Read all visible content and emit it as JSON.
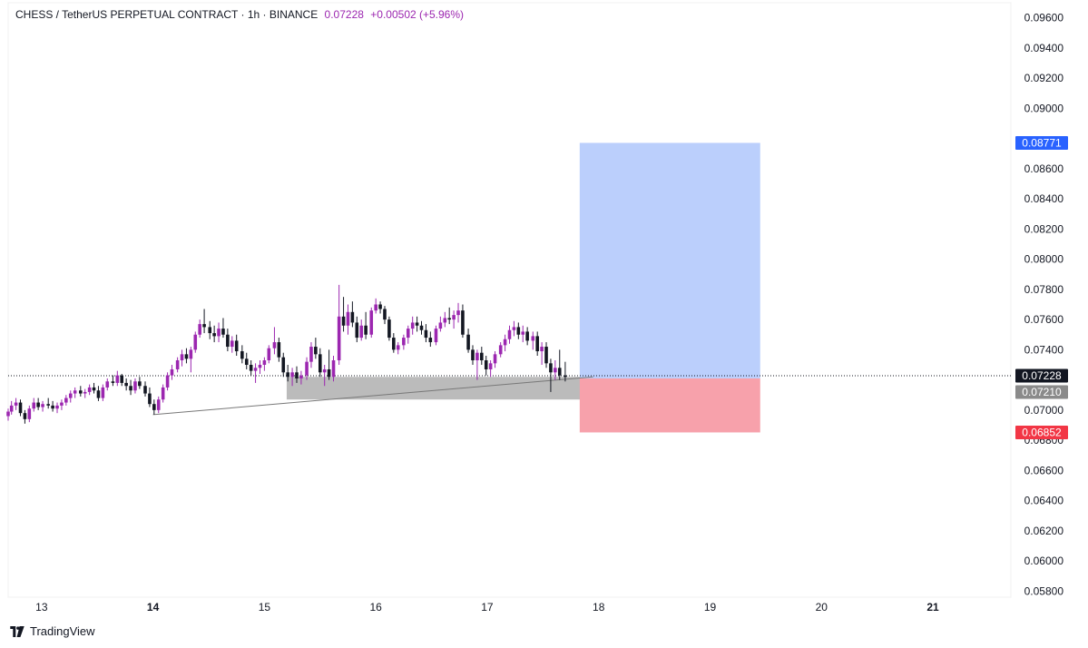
{
  "header": {
    "symbol_title": "CHESS / TetherUS PERPETUAL CONTRACT · 1h · BINANCE",
    "last_price": "0.07228",
    "change": "+0.00502 (+5.96%)"
  },
  "branding": {
    "name": "TradingView"
  },
  "colors": {
    "up_candle": "#9c27b0",
    "down_candle": "#131722",
    "target_zone": "#bbcffc",
    "stop_zone": "#f7a1ab",
    "zone_gray": "#9e9e9e",
    "target_badge": "#2962ff",
    "stop_badge": "#f23645",
    "last_price_badge": "#131722",
    "entry_badge": "#8a8a8a"
  },
  "chart_data": {
    "type": "candlestick",
    "title": "CHESS / TetherUS PERPETUAL CONTRACT · 1h · BINANCE",
    "y_axis": {
      "ylim": [
        0.0576,
        0.097
      ],
      "ticks": [
        "0.09600",
        "0.09400",
        "0.09200",
        "0.09000",
        "0.08600",
        "0.08400",
        "0.08200",
        "0.08000",
        "0.07800",
        "0.07600",
        "0.07400",
        "0.07000",
        "0.06800",
        "0.06600",
        "0.06400",
        "0.06200",
        "0.06000",
        "0.05800"
      ],
      "position": "right"
    },
    "x_axis": {
      "labels": [
        {
          "text": "13",
          "day": 13,
          "bold": false
        },
        {
          "text": "14",
          "day": 14,
          "bold": true
        },
        {
          "text": "15",
          "day": 15,
          "bold": false
        },
        {
          "text": "16",
          "day": 16,
          "bold": false
        },
        {
          "text": "17",
          "day": 17,
          "bold": false
        },
        {
          "text": "18",
          "day": 18,
          "bold": false
        },
        {
          "text": "19",
          "day": 19,
          "bold": false
        },
        {
          "text": "20",
          "day": 20,
          "bold": false
        },
        {
          "text": "21",
          "day": 21,
          "bold": true
        }
      ],
      "xlim_days": [
        12.7,
        21.7
      ]
    },
    "price_labels": {
      "target": "0.08771",
      "last": "0.07228",
      "entry": "0.07210",
      "stop": "0.06852"
    },
    "position_tool": {
      "side": "long",
      "start_day": 17.83,
      "end_day": 19.45,
      "entry": 0.0721,
      "target": 0.08771,
      "stop": 0.06852
    },
    "support_zone": {
      "start_day": 15.2,
      "end_day": 18.05,
      "top": 0.0722,
      "bottom": 0.0707
    },
    "trendline": {
      "from": {
        "day": 14.0,
        "price": 0.0697
      },
      "to": {
        "day": 17.95,
        "price": 0.0722
      }
    },
    "last_price_line": 0.07228,
    "candles": [
      [
        12.7,
        0.0696,
        0.0701,
        0.0693,
        0.0699
      ],
      [
        12.73,
        0.0699,
        0.0706,
        0.0697,
        0.0703
      ],
      [
        12.77,
        0.0703,
        0.0708,
        0.07,
        0.0705
      ],
      [
        12.81,
        0.0705,
        0.0707,
        0.0696,
        0.0698
      ],
      [
        12.85,
        0.0698,
        0.07,
        0.0691,
        0.0694
      ],
      [
        12.89,
        0.0694,
        0.0703,
        0.0692,
        0.0701
      ],
      [
        12.93,
        0.0701,
        0.0708,
        0.0699,
        0.0705
      ],
      [
        12.97,
        0.0705,
        0.0708,
        0.07,
        0.0702
      ],
      [
        13.01,
        0.0702,
        0.0706,
        0.0699,
        0.0704
      ],
      [
        13.06,
        0.0704,
        0.0708,
        0.0701,
        0.0703
      ],
      [
        13.1,
        0.0703,
        0.0706,
        0.0699,
        0.0701
      ],
      [
        13.14,
        0.0701,
        0.0705,
        0.0698,
        0.0703
      ],
      [
        13.18,
        0.0703,
        0.0707,
        0.07,
        0.0705
      ],
      [
        13.22,
        0.0705,
        0.071,
        0.0703,
        0.0708
      ],
      [
        13.26,
        0.0708,
        0.0713,
        0.0705,
        0.0711
      ],
      [
        13.3,
        0.0711,
        0.0715,
        0.0708,
        0.0713
      ],
      [
        13.35,
        0.0713,
        0.0716,
        0.0709,
        0.0711
      ],
      [
        13.39,
        0.0711,
        0.0714,
        0.0708,
        0.0712
      ],
      [
        13.43,
        0.0712,
        0.0717,
        0.071,
        0.0715
      ],
      [
        13.47,
        0.0715,
        0.0718,
        0.0711,
        0.0713
      ],
      [
        13.51,
        0.0713,
        0.0716,
        0.0706,
        0.0708
      ],
      [
        13.55,
        0.0708,
        0.0717,
        0.0706,
        0.0715
      ],
      [
        13.59,
        0.0715,
        0.0721,
        0.0713,
        0.0719
      ],
      [
        13.64,
        0.0719,
        0.0723,
        0.0716,
        0.0718
      ],
      [
        13.68,
        0.0718,
        0.0726,
        0.0716,
        0.0723
      ],
      [
        13.72,
        0.0723,
        0.0724,
        0.0716,
        0.0718
      ],
      [
        13.76,
        0.0718,
        0.0721,
        0.0713,
        0.0716
      ],
      [
        13.8,
        0.0716,
        0.072,
        0.071,
        0.0713
      ],
      [
        13.84,
        0.0713,
        0.0721,
        0.0711,
        0.0719
      ],
      [
        13.88,
        0.0719,
        0.0722,
        0.0714,
        0.0716
      ],
      [
        13.93,
        0.0716,
        0.0719,
        0.0709,
        0.0711
      ],
      [
        13.97,
        0.0711,
        0.0715,
        0.0702,
        0.0704
      ],
      [
        14.01,
        0.0704,
        0.0707,
        0.0697,
        0.07
      ],
      [
        14.05,
        0.07,
        0.0709,
        0.0698,
        0.0707
      ],
      [
        14.09,
        0.0707,
        0.0717,
        0.0705,
        0.0715
      ],
      [
        14.13,
        0.0715,
        0.0725,
        0.0713,
        0.0723
      ],
      [
        14.17,
        0.0723,
        0.073,
        0.072,
        0.0727
      ],
      [
        14.22,
        0.0727,
        0.0735,
        0.0725,
        0.0733
      ],
      [
        14.26,
        0.0733,
        0.074,
        0.0729,
        0.0737
      ],
      [
        14.3,
        0.0737,
        0.0741,
        0.0731,
        0.0734
      ],
      [
        14.34,
        0.0734,
        0.0742,
        0.0725,
        0.074
      ],
      [
        14.38,
        0.074,
        0.0752,
        0.0738,
        0.075
      ],
      [
        14.42,
        0.075,
        0.076,
        0.0748,
        0.0757
      ],
      [
        14.46,
        0.0757,
        0.0767,
        0.0751,
        0.0755
      ],
      [
        14.51,
        0.0755,
        0.0759,
        0.0747,
        0.0751
      ],
      [
        14.55,
        0.0751,
        0.0756,
        0.0745,
        0.0749
      ],
      [
        14.59,
        0.0749,
        0.0758,
        0.0745,
        0.0754
      ],
      [
        14.63,
        0.0754,
        0.0761,
        0.0748,
        0.075
      ],
      [
        14.67,
        0.075,
        0.0754,
        0.0739,
        0.0742
      ],
      [
        14.71,
        0.0742,
        0.0749,
        0.0738,
        0.0746
      ],
      [
        14.75,
        0.0746,
        0.075,
        0.0736,
        0.0739
      ],
      [
        14.8,
        0.0739,
        0.0743,
        0.0731,
        0.0734
      ],
      [
        14.84,
        0.0734,
        0.0738,
        0.0727,
        0.073
      ],
      [
        14.88,
        0.073,
        0.0733,
        0.0723,
        0.0726
      ],
      [
        14.92,
        0.0726,
        0.0731,
        0.0718,
        0.0728
      ],
      [
        14.96,
        0.0728,
        0.0733,
        0.0724,
        0.073
      ],
      [
        15.0,
        0.073,
        0.0735,
        0.0726,
        0.0733
      ],
      [
        15.04,
        0.0733,
        0.0743,
        0.0731,
        0.0741
      ],
      [
        15.09,
        0.0741,
        0.0755,
        0.0737,
        0.0745
      ],
      [
        15.13,
        0.0745,
        0.0748,
        0.0732,
        0.0735
      ],
      [
        15.17,
        0.0735,
        0.0738,
        0.0722,
        0.0725
      ],
      [
        15.21,
        0.0725,
        0.073,
        0.0719,
        0.0722
      ],
      [
        15.25,
        0.0722,
        0.0728,
        0.0716,
        0.0725
      ],
      [
        15.29,
        0.0725,
        0.0729,
        0.0718,
        0.0721
      ],
      [
        15.33,
        0.0721,
        0.0726,
        0.0717,
        0.0723
      ],
      [
        15.38,
        0.0723,
        0.0735,
        0.072,
        0.0732
      ],
      [
        15.42,
        0.0732,
        0.0745,
        0.0728,
        0.0742
      ],
      [
        15.46,
        0.0742,
        0.0748,
        0.0734,
        0.0737
      ],
      [
        15.5,
        0.0737,
        0.0741,
        0.0722,
        0.0725
      ],
      [
        15.54,
        0.0725,
        0.073,
        0.0716,
        0.0727
      ],
      [
        15.58,
        0.0727,
        0.074,
        0.072,
        0.0722
      ],
      [
        15.62,
        0.0722,
        0.0736,
        0.0719,
        0.0733
      ],
      [
        15.67,
        0.0733,
        0.0783,
        0.073,
        0.0762
      ],
      [
        15.71,
        0.0762,
        0.0775,
        0.0752,
        0.0756
      ],
      [
        15.75,
        0.0756,
        0.077,
        0.075,
        0.0765
      ],
      [
        15.79,
        0.0765,
        0.0772,
        0.0755,
        0.0758
      ],
      [
        15.83,
        0.0758,
        0.0762,
        0.0745,
        0.0748
      ],
      [
        15.87,
        0.0748,
        0.076,
        0.0746,
        0.0756
      ],
      [
        15.91,
        0.0756,
        0.0765,
        0.0747,
        0.075
      ],
      [
        15.96,
        0.075,
        0.0768,
        0.0748,
        0.0766
      ],
      [
        16.0,
        0.0766,
        0.0774,
        0.0764,
        0.077
      ],
      [
        16.04,
        0.077,
        0.0772,
        0.0764,
        0.0767
      ],
      [
        16.08,
        0.0767,
        0.0769,
        0.0757,
        0.076
      ],
      [
        16.12,
        0.076,
        0.0762,
        0.0746,
        0.0748
      ],
      [
        16.16,
        0.0748,
        0.0751,
        0.0738,
        0.074
      ],
      [
        16.2,
        0.074,
        0.0745,
        0.0737,
        0.0743
      ],
      [
        16.25,
        0.0743,
        0.075,
        0.074,
        0.0748
      ],
      [
        16.29,
        0.0748,
        0.0756,
        0.0744,
        0.0754
      ],
      [
        16.33,
        0.0754,
        0.0762,
        0.075,
        0.0758
      ],
      [
        16.37,
        0.0758,
        0.0762,
        0.0752,
        0.0756
      ],
      [
        16.41,
        0.0756,
        0.0759,
        0.075,
        0.0753
      ],
      [
        16.45,
        0.0753,
        0.0757,
        0.0745,
        0.0748
      ],
      [
        16.49,
        0.0748,
        0.0752,
        0.0742,
        0.0745
      ],
      [
        16.54,
        0.0745,
        0.0756,
        0.0743,
        0.0754
      ],
      [
        16.58,
        0.0754,
        0.0762,
        0.0752,
        0.0758
      ],
      [
        16.62,
        0.0758,
        0.0765,
        0.0755,
        0.0761
      ],
      [
        16.66,
        0.0761,
        0.0768,
        0.0757,
        0.076
      ],
      [
        16.7,
        0.076,
        0.0766,
        0.0754,
        0.0763
      ],
      [
        16.74,
        0.0763,
        0.0771,
        0.0758,
        0.0766
      ],
      [
        16.78,
        0.0766,
        0.077,
        0.0748,
        0.075
      ],
      [
        16.83,
        0.075,
        0.0754,
        0.0738,
        0.074
      ],
      [
        16.87,
        0.074,
        0.0743,
        0.073,
        0.0733
      ],
      [
        16.91,
        0.0733,
        0.074,
        0.072,
        0.0738
      ],
      [
        16.95,
        0.0738,
        0.0742,
        0.073,
        0.0733
      ],
      [
        16.99,
        0.0733,
        0.0736,
        0.0723,
        0.0727
      ],
      [
        17.03,
        0.0727,
        0.0733,
        0.0722,
        0.0731
      ],
      [
        17.07,
        0.0731,
        0.0739,
        0.0728,
        0.0737
      ],
      [
        17.12,
        0.0737,
        0.0745,
        0.0735,
        0.0743
      ],
      [
        17.16,
        0.0743,
        0.075,
        0.0739,
        0.0747
      ],
      [
        17.2,
        0.0747,
        0.0756,
        0.0744,
        0.0753
      ],
      [
        17.24,
        0.0753,
        0.0759,
        0.0749,
        0.0755
      ],
      [
        17.28,
        0.0755,
        0.0758,
        0.0747,
        0.075
      ],
      [
        17.32,
        0.075,
        0.0756,
        0.0745,
        0.0752
      ],
      [
        17.36,
        0.0752,
        0.0755,
        0.0743,
        0.0746
      ],
      [
        17.41,
        0.0746,
        0.0752,
        0.074,
        0.0749
      ],
      [
        17.45,
        0.0749,
        0.0752,
        0.0736,
        0.0739
      ],
      [
        17.49,
        0.0739,
        0.0745,
        0.073,
        0.0742
      ],
      [
        17.53,
        0.0742,
        0.0745,
        0.0728,
        0.0731
      ],
      [
        17.57,
        0.0731,
        0.0734,
        0.0712,
        0.0725
      ],
      [
        17.61,
        0.0725,
        0.0733,
        0.072,
        0.0728
      ],
      [
        17.65,
        0.0728,
        0.074,
        0.072,
        0.0723
      ],
      [
        17.7,
        0.0723,
        0.0732,
        0.0719,
        0.0722
      ]
    ]
  }
}
